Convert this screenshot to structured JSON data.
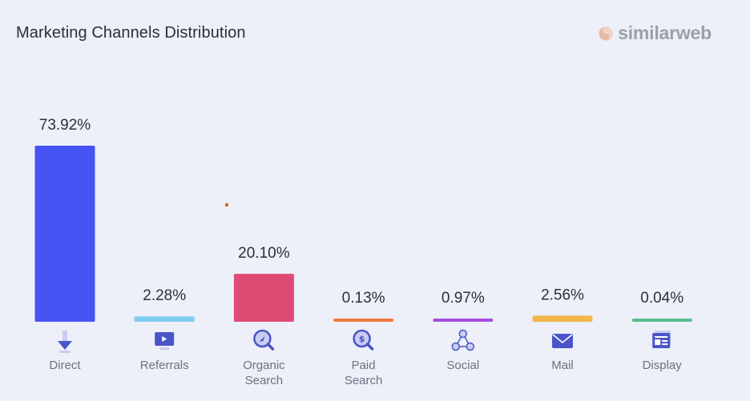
{
  "header": {
    "title": "Marketing Channels Distribution",
    "brand": "similarweb"
  },
  "chart_data": {
    "type": "bar",
    "title": "Marketing Channels Distribution",
    "categories": [
      "Direct",
      "Referrals",
      "Organic Search",
      "Paid Search",
      "Social",
      "Mail",
      "Display"
    ],
    "category_lines": [
      [
        "Direct"
      ],
      [
        "Referrals"
      ],
      [
        "Organic",
        "Search"
      ],
      [
        "Paid",
        "Search"
      ],
      [
        "Social"
      ],
      [
        "Mail"
      ],
      [
        "Display"
      ]
    ],
    "values": [
      73.92,
      2.28,
      20.1,
      0.13,
      0.97,
      2.56,
      0.04
    ],
    "value_labels": [
      "73.92%",
      "2.28%",
      "20.10%",
      "0.13%",
      "0.97%",
      "2.56%",
      "0.04%"
    ],
    "colors": [
      "#4654f5",
      "#7ecdee",
      "#df4b74",
      "#f0793c",
      "#a64ddf",
      "#f2b84b",
      "#59be8c"
    ],
    "icons": [
      "direct-arrow-icon",
      "referrals-monitor-icon",
      "organic-search-icon",
      "paid-search-icon",
      "social-network-icon",
      "mail-envelope-icon",
      "display-ad-icon"
    ],
    "xlabel": "",
    "ylabel": "",
    "ylim": [
      0,
      73.92
    ],
    "grid": false,
    "legend": "none"
  }
}
